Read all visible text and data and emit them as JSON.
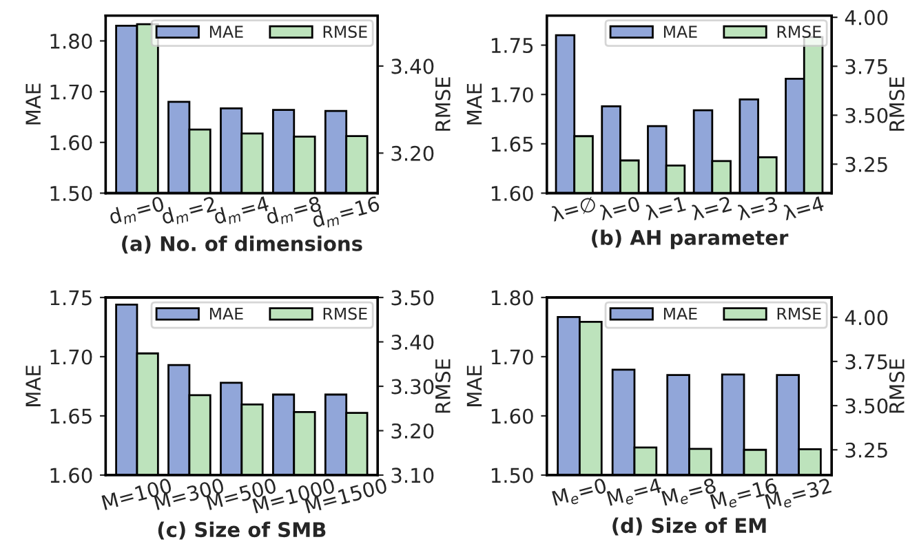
{
  "chart_data": [
    {
      "type": "bar",
      "xlabel": "(a) No. of dimensions",
      "ylabel": "MAE",
      "y2label": "RMSE",
      "categories": [
        "d$_{m}$=0",
        "d$_{m}$=2",
        "d$_{m}$=4",
        "d$_{m}$=8",
        "d$_{m}$=16"
      ],
      "ylim": [
        1.5,
        1.85
      ],
      "yticks": [
        {
          "value": 1.5,
          "label": "1.50"
        },
        {
          "value": 1.6,
          "label": "1.60"
        },
        {
          "value": 1.7,
          "label": "1.70"
        },
        {
          "value": 1.8,
          "label": "1.80"
        }
      ],
      "y2lim": [
        3.108,
        3.516
      ],
      "y2ticks": [
        {
          "value": 3.2,
          "label": "3.20"
        },
        {
          "value": 3.4,
          "label": "3.40"
        }
      ],
      "legend": "top right",
      "series": [
        {
          "name": "MAE",
          "color": "#91a6d9",
          "values": [
            1.83,
            1.68,
            1.667,
            1.664,
            1.662
          ]
        },
        {
          "name": "RMSE",
          "color": "#bde3bc",
          "axis": "y2",
          "values": [
            3.496,
            3.254,
            3.245,
            3.238,
            3.239
          ]
        }
      ]
    },
    {
      "type": "bar",
      "xlabel": "(b) AH parameter",
      "ylabel": "MAE",
      "y2label": "RMSE",
      "categories": [
        "λ=∅",
        "λ=0",
        "λ=1",
        "λ=2",
        "λ=3",
        "λ=4"
      ],
      "ylim": [
        1.6,
        1.78
      ],
      "yticks": [
        {
          "value": 1.6,
          "label": "1.60"
        },
        {
          "value": 1.65,
          "label": "1.65"
        },
        {
          "value": 1.7,
          "label": "1.70"
        },
        {
          "value": 1.75,
          "label": "1.75"
        }
      ],
      "y2lim": [
        3.102,
        4.009
      ],
      "y2ticks": [
        {
          "value": 3.25,
          "label": "3.25"
        },
        {
          "value": 3.5,
          "label": "3.50"
        },
        {
          "value": 3.75,
          "label": "3.75"
        },
        {
          "value": 4.0,
          "label": "4.00"
        }
      ],
      "legend": "top right",
      "series": [
        {
          "name": "MAE",
          "color": "#91a6d9",
          "values": [
            1.76,
            1.688,
            1.668,
            1.684,
            1.695,
            1.716
          ]
        },
        {
          "name": "RMSE",
          "color": "#bde3bc",
          "axis": "y2",
          "values": [
            3.393,
            3.269,
            3.243,
            3.266,
            3.285,
            3.899
          ]
        }
      ]
    },
    {
      "type": "bar",
      "xlabel": "(c) Size of SMB",
      "ylabel": "MAE",
      "y2label": "RMSE",
      "categories": [
        "M=100",
        "M=300",
        "M=500",
        "M=1000",
        "M=1500"
      ],
      "ylim": [
        1.6,
        1.75
      ],
      "yticks": [
        {
          "value": 1.6,
          "label": "1.60"
        },
        {
          "value": 1.65,
          "label": "1.65"
        },
        {
          "value": 1.7,
          "label": "1.70"
        },
        {
          "value": 1.75,
          "label": "1.75"
        }
      ],
      "y2lim": [
        3.1,
        3.5
      ],
      "y2ticks": [
        {
          "value": 3.1,
          "label": "3.10"
        },
        {
          "value": 3.2,
          "label": "3.20"
        },
        {
          "value": 3.3,
          "label": "3.30"
        },
        {
          "value": 3.4,
          "label": "3.40"
        },
        {
          "value": 3.5,
          "label": "3.50"
        }
      ],
      "legend": "top right",
      "series": [
        {
          "name": "MAE",
          "color": "#91a6d9",
          "values": [
            1.744,
            1.693,
            1.678,
            1.668,
            1.668
          ]
        },
        {
          "name": "RMSE",
          "color": "#bde3bc",
          "axis": "y2",
          "values": [
            3.374,
            3.28,
            3.259,
            3.242,
            3.24
          ]
        }
      ]
    },
    {
      "type": "bar",
      "xlabel": "(d) Size of EM",
      "ylabel": "MAE",
      "y2label": "RMSE",
      "categories": [
        "M$_{e}$=0",
        "M$_{e}$=4",
        "M$_{e}$=8",
        "M$_{e}$=16",
        "M$_{e}$=32"
      ],
      "ylim": [
        1.5,
        1.8
      ],
      "yticks": [
        {
          "value": 1.5,
          "label": "1.50"
        },
        {
          "value": 1.6,
          "label": "1.60"
        },
        {
          "value": 1.7,
          "label": "1.70"
        },
        {
          "value": 1.8,
          "label": "1.80"
        }
      ],
      "y2lim": [
        3.107,
        4.112
      ],
      "y2ticks": [
        {
          "value": 3.25,
          "label": "3.25"
        },
        {
          "value": 3.5,
          "label": "3.50"
        },
        {
          "value": 3.75,
          "label": "3.75"
        },
        {
          "value": 4.0,
          "label": "4.00"
        }
      ],
      "legend": "top right",
      "series": [
        {
          "name": "MAE",
          "color": "#91a6d9",
          "values": [
            1.767,
            1.678,
            1.669,
            1.67,
            1.669
          ]
        },
        {
          "name": "RMSE",
          "color": "#bde3bc",
          "axis": "y2",
          "values": [
            3.974,
            3.263,
            3.255,
            3.25,
            3.253
          ]
        }
      ]
    }
  ]
}
